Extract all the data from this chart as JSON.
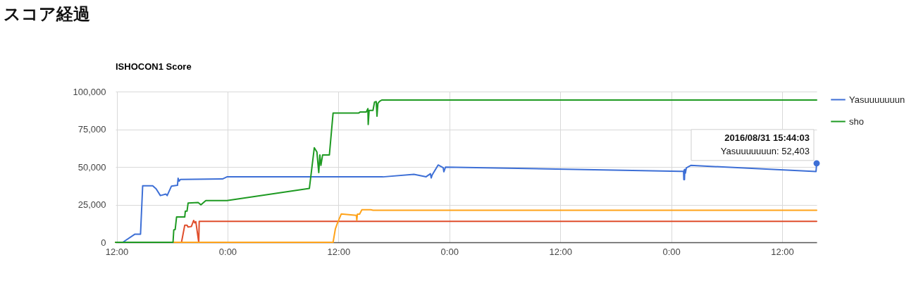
{
  "chart_data": {
    "type": "line",
    "title": "スコア経過",
    "subtitle": "ISHOCON1 Score",
    "series": [
      {
        "name": "Yasuuuuuuun",
        "color": "#3d6fd6",
        "x": [
          "2016-08-28T11:53",
          "2016-08-28T12:40",
          "2016-08-28T13:59",
          "2016-08-28T14:35",
          "2016-08-28T14:49",
          "2016-08-28T15:54",
          "2016-08-28T16:16",
          "2016-08-28T16:44",
          "2016-08-28T17:20",
          "2016-08-28T17:28",
          "2016-08-28T17:56",
          "2016-08-28T18:35",
          "2016-08-28T18:39",
          "2016-08-28T18:46",
          "2016-08-28T18:54",
          "2016-08-28T23:27",
          "2016-08-28T23:56",
          "2016-08-29T16:48",
          "2016-08-29T20:10",
          "2016-08-29T21:29",
          "2016-08-29T21:57",
          "2016-08-29T22:02",
          "2016-08-29T22:08",
          "2016-08-29T22:47",
          "2016-08-29T23:20",
          "2016-08-29T23:24",
          "2016-08-29T23:35",
          "2016-08-31T00:59",
          "2016-08-31T01:20",
          "2016-08-31T01:22",
          "2016-08-31T01:24",
          "2016-08-31T01:26",
          "2016-08-31T01:28",
          "2016-08-31T01:32",
          "2016-08-31T01:38",
          "2016-08-31T02:07",
          "2016-08-31T15:40",
          "2016-08-31T15:44"
        ],
        "values": [
          0,
          0,
          5400,
          5400,
          37500,
          37500,
          35500,
          31000,
          32000,
          31000,
          37300,
          37800,
          42500,
          40600,
          41700,
          42000,
          43400,
          43400,
          45100,
          43500,
          45500,
          42700,
          44600,
          51300,
          49500,
          46800,
          49900,
          47100,
          47100,
          41600,
          48000,
          41600,
          48400,
          45900,
          49400,
          51000,
          47000,
          52403
        ]
      },
      {
        "color": "#e04e2c",
        "x": [
          "2016-08-28T11:53",
          "2016-08-28T19:01",
          "2016-08-28T19:22",
          "2016-08-28T19:37",
          "2016-08-28T19:44",
          "2016-08-28T20:05",
          "2016-08-28T20:20",
          "2016-08-28T20:27",
          "2016-08-28T20:34",
          "2016-08-28T20:53",
          "2016-08-28T20:56",
          "2016-08-31T15:44"
        ],
        "values": [
          0,
          0,
          11300,
          11300,
          10100,
          10500,
          14500,
          12900,
          13700,
          0,
          13900,
          13900
        ]
      },
      {
        "color": "#ffa31a",
        "x": [
          "2016-08-28T11:53",
          "2016-08-29T11:25",
          "2016-08-29T11:40",
          "2016-08-29T11:54",
          "2016-08-29T12:18",
          "2016-08-29T13:56",
          "2016-08-29T13:59",
          "2016-08-29T14:03",
          "2016-08-29T14:17",
          "2016-08-29T14:32",
          "2016-08-29T15:29",
          "2016-08-29T15:45",
          "2016-08-31T15:44"
        ],
        "values": [
          0,
          0,
          9000,
          12900,
          18800,
          17900,
          14700,
          18700,
          18700,
          21600,
          21600,
          21300,
          21300
        ]
      },
      {
        "name": "sho",
        "color": "#1e9a22",
        "x": [
          "2016-08-28T11:53",
          "2016-08-28T18:06",
          "2016-08-28T18:11",
          "2016-08-28T18:20",
          "2016-08-28T18:29",
          "2016-08-28T19:22",
          "2016-08-28T19:26",
          "2016-08-28T19:37",
          "2016-08-28T19:44",
          "2016-08-28T20:49",
          "2016-08-28T21:07",
          "2016-08-28T21:39",
          "2016-08-28T23:56",
          "2016-08-29T08:51",
          "2016-08-29T09:23",
          "2016-08-29T09:40",
          "2016-08-29T09:52",
          "2016-08-29T09:59",
          "2016-08-29T10:06",
          "2016-08-29T10:17",
          "2016-08-29T11:01",
          "2016-08-29T11:25",
          "2016-08-29T14:10",
          "2016-08-29T14:22",
          "2016-08-29T15:01",
          "2016-08-29T15:11",
          "2016-08-29T15:13",
          "2016-08-29T15:19",
          "2016-08-29T15:44",
          "2016-08-29T15:54",
          "2016-08-29T16:05",
          "2016-08-29T16:10",
          "2016-08-29T16:16",
          "2016-08-29T16:27",
          "2016-08-29T16:41",
          "2016-08-31T15:44"
        ],
        "values": [
          0,
          0,
          8200,
          8500,
          16800,
          16800,
          20700,
          20700,
          26100,
          26400,
          24900,
          27700,
          27700,
          35700,
          62700,
          59900,
          46300,
          58000,
          51000,
          58000,
          58000,
          85700,
          85700,
          86500,
          86500,
          88700,
          78200,
          87500,
          87500,
          93000,
          93300,
          83700,
          92200,
          93500,
          94400,
          94400
        ]
      }
    ],
    "xlim": [
      "2016-08-28T11:53",
      "2016-08-31T15:44"
    ],
    "xticks": [
      {
        "value": "2016-08-28T12:00",
        "label": "12:00"
      },
      {
        "value": "2016-08-29T00:00",
        "label": "0:00"
      },
      {
        "value": "2016-08-29T12:00",
        "label": "12:00"
      },
      {
        "value": "2016-08-30T00:00",
        "label": "0:00"
      },
      {
        "value": "2016-08-30T12:00",
        "label": "12:00"
      },
      {
        "value": "2016-08-31T00:00",
        "label": "0:00"
      },
      {
        "value": "2016-08-31T12:00",
        "label": "12:00"
      }
    ],
    "ylim": [
      0,
      100000
    ],
    "yticks": [
      0,
      {
        "value": 25000,
        "label": "25,000"
      },
      {
        "value": 50000,
        "label": "50,000"
      },
      {
        "value": 75000,
        "label": "75,000"
      },
      {
        "value": 100000,
        "label": "100,000"
      }
    ],
    "grid": true,
    "legend": "right",
    "annotations": [
      {
        "text": "2016/08/31 15:44:03",
        "x": "2016-08-31T15:44",
        "y": 52403
      },
      {
        "text": "Yasuuuuuuun: 52,403",
        "x": "2016-08-31T15:44",
        "y": 52403
      }
    ]
  }
}
